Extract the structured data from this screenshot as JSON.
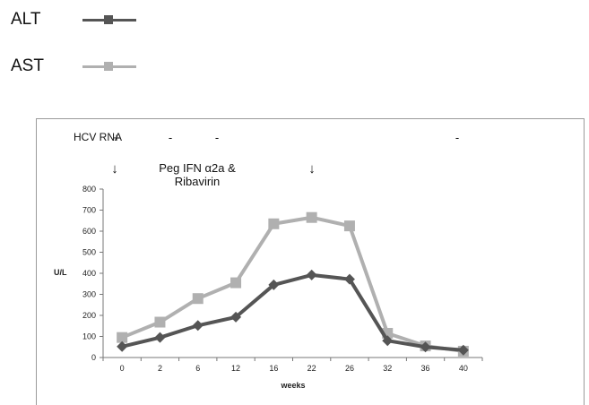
{
  "legend": {
    "items": [
      {
        "label": "ALT",
        "color": "#555555",
        "marker": "square"
      },
      {
        "label": "AST",
        "color": "#b0b0b0",
        "marker": "square"
      }
    ]
  },
  "annotations": {
    "hcv_rna_label": "HCV RNA",
    "hcv_rna_marks": [
      {
        "text": "+",
        "week": "0"
      },
      {
        "text": "-",
        "week": "2"
      },
      {
        "text": "-",
        "week": "6"
      },
      {
        "text": "-",
        "week": "40"
      }
    ],
    "arrows": [
      {
        "text": "↓",
        "week": "0"
      },
      {
        "text": "↓",
        "week": "22"
      }
    ],
    "treatment_line1": "Peg IFN α2a &",
    "treatment_line2": "Ribavirin"
  },
  "chart_data": {
    "type": "line",
    "categories": [
      "0",
      "2",
      "6",
      "12",
      "16",
      "22",
      "26",
      "32",
      "36",
      "40"
    ],
    "series": [
      {
        "name": "ALT",
        "color": "#555555",
        "marker": "diamond",
        "values": [
          52,
          95,
          152,
          192,
          345,
          392,
          372,
          80,
          50,
          35
        ]
      },
      {
        "name": "AST",
        "color": "#b0b0b0",
        "marker": "square",
        "values": [
          95,
          168,
          280,
          355,
          635,
          665,
          625,
          115,
          55,
          30
        ]
      }
    ],
    "xlabel": "weeks",
    "ylabel": "U/L",
    "ylim": [
      0,
      800
    ],
    "yticks": [
      0,
      100,
      200,
      300,
      400,
      500,
      600,
      700,
      800
    ],
    "grid": false,
    "legend": "top-left"
  }
}
